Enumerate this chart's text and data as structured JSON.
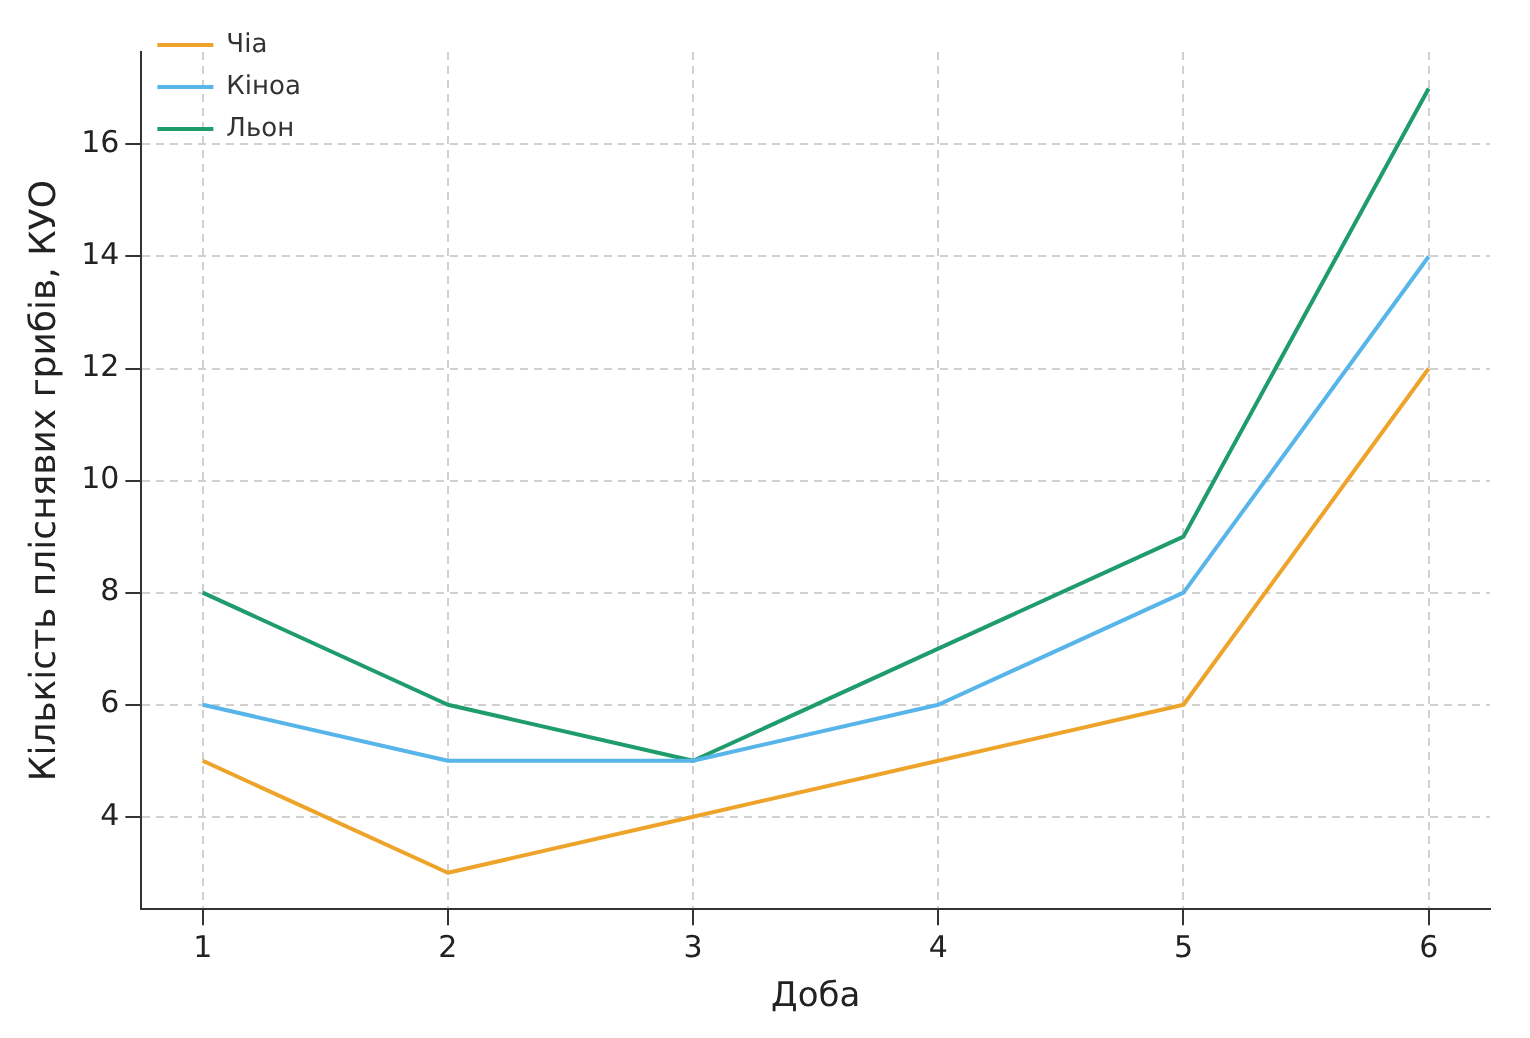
{
  "chart_data": {
    "type": "line",
    "xlabel": "Доба",
    "ylabel": "Кількість пліснявих грибів, КУО",
    "x": [
      1,
      2,
      3,
      4,
      5,
      6
    ],
    "series": [
      {
        "name": "Чіа",
        "color": "#eea42a",
        "values": [
          5,
          3,
          4,
          5,
          6,
          12
        ]
      },
      {
        "name": "Кіноа",
        "color": "#58b5ea",
        "values": [
          6,
          5,
          5,
          6,
          8,
          14
        ]
      },
      {
        "name": "Льон",
        "color": "#1e9c6c",
        "values": [
          8,
          6,
          5,
          7,
          9,
          17
        ]
      }
    ],
    "xlim": [
      0.75,
      6.25
    ],
    "xticks": [
      1,
      2,
      3,
      4,
      5,
      6
    ],
    "ylim": [
      2.35,
      17.65
    ],
    "yticks": [
      4,
      6,
      8,
      10,
      12,
      14,
      16
    ],
    "grid": true,
    "legend": "top left",
    "marker": "none",
    "line_style": "solid"
  }
}
